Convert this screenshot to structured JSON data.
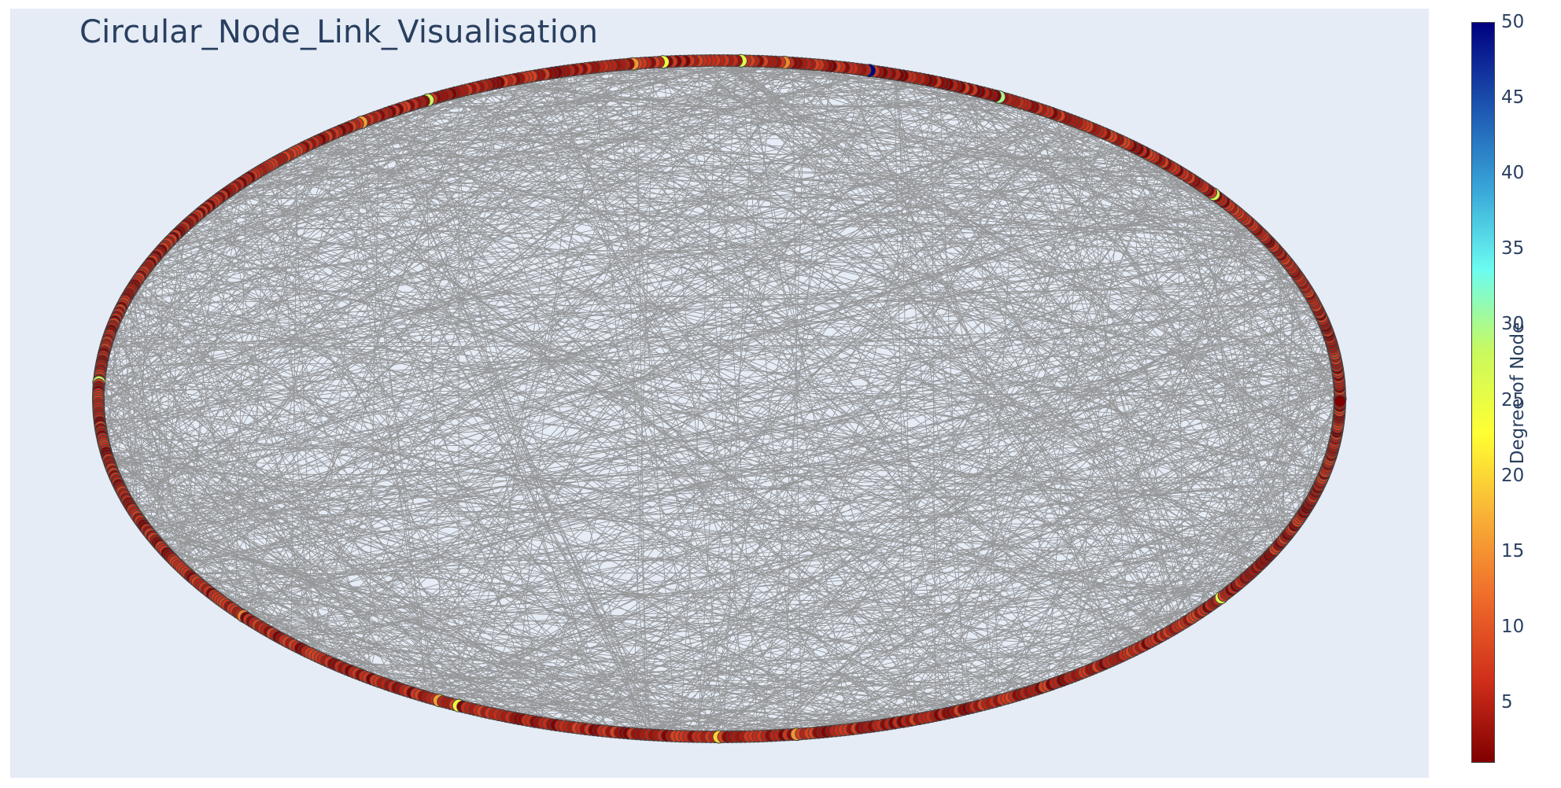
{
  "title": "Circular_Node_Link_Visualisation",
  "colorbar": {
    "title": "Degree of Node",
    "min": 1,
    "max": 50,
    "ticks": [
      5,
      10,
      15,
      20,
      25,
      30,
      35,
      40,
      45,
      50
    ],
    "colorscale": [
      "#800000",
      "#d02f1a",
      "#ef6b2a",
      "#f9b136",
      "#ffff33",
      "#c9f95e",
      "#6afcf1",
      "#37a4d8",
      "#1c53b0",
      "#000080"
    ]
  },
  "colors": {
    "plot_background": "#e5ecf6",
    "edge_color": "#888888",
    "node_outline": "#444444"
  },
  "chart_data": {
    "type": "network",
    "layout": "circular",
    "node_count": 900,
    "highlighted_nodes": [
      {
        "angle_deg": 0,
        "degree": 10
      },
      {
        "angle_deg": 37,
        "degree": 27
      },
      {
        "angle_deg": 63,
        "degree": 30
      },
      {
        "angle_deg": 76,
        "degree": 50
      },
      {
        "angle_deg": 84,
        "degree": 14
      },
      {
        "angle_deg": 88,
        "degree": 26
      },
      {
        "angle_deg": 95,
        "degree": 24
      },
      {
        "angle_deg": 98,
        "degree": 15
      },
      {
        "angle_deg": 118,
        "degree": 28
      },
      {
        "angle_deg": 125,
        "degree": 16
      },
      {
        "angle_deg": 177,
        "degree": 28
      },
      {
        "angle_deg": 220,
        "degree": 13
      },
      {
        "angle_deg": 243,
        "degree": 16
      },
      {
        "angle_deg": 245,
        "degree": 24
      },
      {
        "angle_deg": 270,
        "degree": 20
      },
      {
        "angle_deg": 277,
        "degree": 15
      },
      {
        "angle_deg": 324,
        "degree": 26
      }
    ]
  }
}
